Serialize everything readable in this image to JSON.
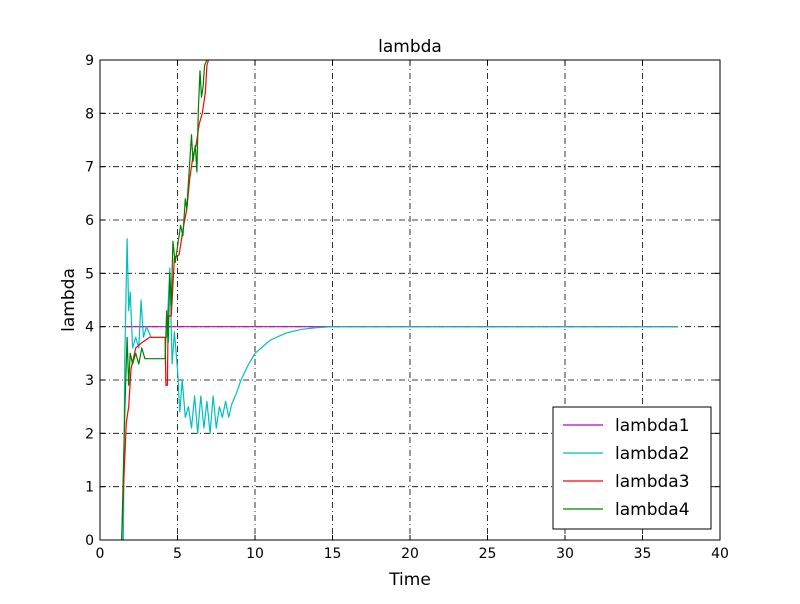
{
  "chart_data": {
    "type": "line",
    "title": "lambda",
    "xlabel": "Time",
    "ylabel": "lambda",
    "xlim": [
      0,
      40
    ],
    "ylim": [
      0,
      9
    ],
    "x_ticks": [
      0,
      5,
      10,
      15,
      20,
      25,
      30,
      35,
      40
    ],
    "y_ticks": [
      0,
      1,
      2,
      3,
      4,
      5,
      6,
      7,
      8,
      9
    ],
    "grid": true,
    "legend_position": "lower-right",
    "series": [
      {
        "name": "lambda1",
        "color": "#bf00bf",
        "points": [
          [
            1.5,
            4.0
          ],
          [
            1.8,
            4.0
          ],
          [
            5,
            4.0
          ],
          [
            10,
            4.0
          ],
          [
            15,
            4.0
          ],
          [
            20,
            4.0
          ],
          [
            25,
            4.0
          ],
          [
            30,
            4.0
          ],
          [
            35,
            4.0
          ],
          [
            37.3,
            4.0
          ]
        ]
      },
      {
        "name": "lambda2",
        "color": "#00bfbf",
        "points": [
          [
            1.5,
            0.0
          ],
          [
            1.6,
            3.4
          ],
          [
            1.75,
            5.65
          ],
          [
            1.85,
            4.3
          ],
          [
            1.95,
            4.65
          ],
          [
            2.1,
            3.6
          ],
          [
            2.3,
            3.8
          ],
          [
            2.5,
            3.6
          ],
          [
            2.65,
            4.5
          ],
          [
            2.8,
            3.8
          ],
          [
            3.0,
            4.0
          ],
          [
            3.3,
            3.8
          ],
          [
            3.8,
            3.8
          ],
          [
            4.3,
            3.8
          ],
          [
            4.5,
            5.1
          ],
          [
            4.65,
            3.3
          ],
          [
            4.8,
            3.9
          ],
          [
            5.0,
            3.2
          ],
          [
            5.15,
            2.4
          ],
          [
            5.3,
            3.0
          ],
          [
            5.5,
            2.3
          ],
          [
            5.7,
            2.5
          ],
          [
            5.9,
            2.1
          ],
          [
            6.1,
            2.7
          ],
          [
            6.3,
            2.0
          ],
          [
            6.5,
            2.7
          ],
          [
            6.7,
            2.1
          ],
          [
            6.9,
            2.6
          ],
          [
            7.1,
            2.0
          ],
          [
            7.3,
            2.7
          ],
          [
            7.5,
            2.1
          ],
          [
            7.7,
            2.5
          ],
          [
            7.9,
            2.3
          ],
          [
            8.1,
            2.6
          ],
          [
            8.3,
            2.3
          ],
          [
            8.5,
            2.55
          ],
          [
            8.8,
            2.75
          ],
          [
            9.1,
            3.0
          ],
          [
            9.5,
            3.25
          ],
          [
            10.0,
            3.5
          ],
          [
            11.0,
            3.75
          ],
          [
            12.0,
            3.88
          ],
          [
            13.0,
            3.95
          ],
          [
            14.0,
            3.98
          ],
          [
            15.0,
            4.0
          ],
          [
            20.0,
            4.0
          ],
          [
            25.0,
            4.0
          ],
          [
            30.0,
            4.0
          ],
          [
            37.3,
            4.0
          ]
        ]
      },
      {
        "name": "lambda3",
        "color": "#ff0000",
        "points": [
          [
            1.4,
            0.0
          ],
          [
            1.55,
            1.2
          ],
          [
            1.7,
            2.2
          ],
          [
            1.85,
            2.5
          ],
          [
            2.0,
            3.2
          ],
          [
            2.3,
            3.6
          ],
          [
            2.7,
            3.7
          ],
          [
            3.2,
            3.8
          ],
          [
            3.8,
            3.8
          ],
          [
            4.2,
            3.8
          ],
          [
            4.25,
            2.9
          ],
          [
            4.35,
            2.9
          ],
          [
            4.4,
            4.2
          ],
          [
            4.6,
            4.2
          ],
          [
            4.8,
            5.3
          ],
          [
            5.1,
            5.35
          ],
          [
            5.4,
            5.9
          ],
          [
            5.6,
            6.2
          ],
          [
            5.8,
            6.8
          ],
          [
            6.0,
            7.2
          ],
          [
            6.2,
            7.4
          ],
          [
            6.4,
            7.8
          ],
          [
            6.6,
            8.0
          ],
          [
            6.8,
            8.4
          ],
          [
            6.9,
            8.9
          ],
          [
            7.0,
            9.0
          ]
        ]
      },
      {
        "name": "lambda4",
        "color": "#008000",
        "points": [
          [
            1.4,
            0.0
          ],
          [
            1.6,
            2.4
          ],
          [
            1.75,
            3.8
          ],
          [
            1.85,
            2.9
          ],
          [
            1.95,
            3.5
          ],
          [
            2.1,
            3.3
          ],
          [
            2.3,
            3.5
          ],
          [
            2.5,
            3.3
          ],
          [
            2.7,
            3.6
          ],
          [
            2.9,
            3.4
          ],
          [
            3.3,
            3.4
          ],
          [
            3.8,
            3.4
          ],
          [
            4.2,
            3.4
          ],
          [
            4.3,
            4.3
          ],
          [
            4.4,
            3.7
          ],
          [
            4.5,
            5.0
          ],
          [
            4.6,
            4.4
          ],
          [
            4.7,
            5.6
          ],
          [
            4.85,
            5.2
          ],
          [
            5.0,
            5.5
          ],
          [
            5.2,
            5.9
          ],
          [
            5.35,
            5.7
          ],
          [
            5.5,
            6.4
          ],
          [
            5.6,
            6.2
          ],
          [
            5.75,
            6.9
          ],
          [
            5.9,
            7.6
          ],
          [
            6.0,
            7.1
          ],
          [
            6.15,
            7.4
          ],
          [
            6.25,
            6.9
          ],
          [
            6.35,
            8.1
          ],
          [
            6.45,
            8.8
          ],
          [
            6.55,
            8.3
          ],
          [
            6.65,
            8.5
          ],
          [
            6.75,
            8.9
          ],
          [
            6.9,
            9.0
          ]
        ]
      }
    ]
  }
}
